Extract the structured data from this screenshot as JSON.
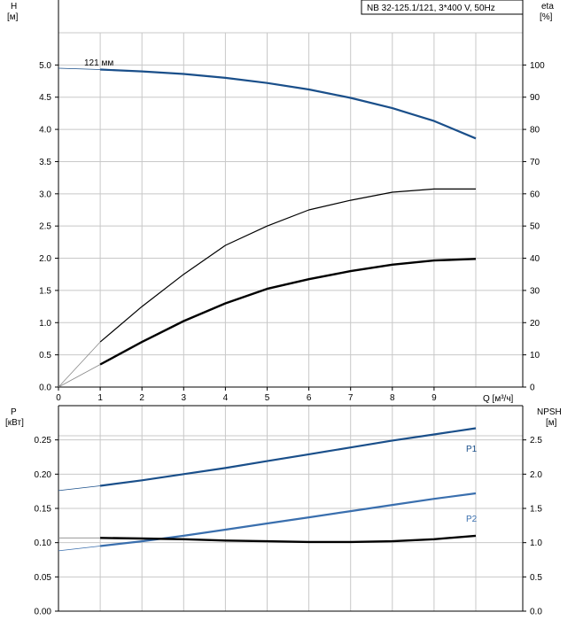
{
  "title_box": "NB 32-125.1/121, 3*400 V, 50Hz",
  "top_panel": {
    "left_axis_label": [
      "H",
      "[м]"
    ],
    "right_axis_label": [
      "eta",
      "[%]"
    ],
    "x_axis_label": "Q [м³/ч]",
    "x_ticks": [
      "0",
      "1",
      "2",
      "3",
      "4",
      "5",
      "6",
      "7",
      "8",
      "9"
    ],
    "left_ticks": [
      "0.0",
      "0.5",
      "1.0",
      "1.5",
      "2.0",
      "2.5",
      "3.0",
      "3.5",
      "4.0",
      "4.5",
      "5.0"
    ],
    "right_ticks": [
      "0",
      "10",
      "20",
      "30",
      "40",
      "50",
      "60",
      "70",
      "80",
      "90",
      "100"
    ],
    "curve_label": "121 мм"
  },
  "bottom_panel": {
    "left_axis_label": [
      "P",
      "[кВт]"
    ],
    "right_axis_label": [
      "NPSH",
      "[м]"
    ],
    "left_ticks": [
      "0.00",
      "0.05",
      "0.10",
      "0.15",
      "0.20",
      "0.25"
    ],
    "right_ticks": [
      "0.0",
      "0.5",
      "1.0",
      "1.5",
      "2.0",
      "2.5"
    ],
    "p1_label": "P1",
    "p2_label": "P2"
  },
  "colors": {
    "blue": "#1a4f8a",
    "blue_light": "#3a6fae",
    "black": "#000000",
    "grid": "#c8c8c8"
  },
  "chart_data": [
    {
      "type": "line",
      "xlim": [
        0,
        10
      ],
      "ylim": [
        0,
        5.5
      ],
      "y2lim": [
        0,
        110
      ],
      "series": [
        {
          "name": "121 мм",
          "axis": "left",
          "color": "#1a4f8a",
          "x": [
            0,
            1,
            2,
            3,
            4,
            5,
            6,
            7,
            8,
            9,
            10
          ],
          "y": [
            4.95,
            4.93,
            4.9,
            4.86,
            4.8,
            4.72,
            4.62,
            4.49,
            4.33,
            4.13,
            3.86
          ]
        },
        {
          "axis": "right",
          "color": "#000000",
          "x": [
            0,
            1,
            2,
            3,
            4,
            5,
            6,
            7,
            8,
            9,
            10
          ],
          "y": [
            0,
            14,
            25,
            35,
            44,
            50,
            55,
            58,
            60.5,
            61.5,
            61.5
          ]
        },
        {
          "axis": "right",
          "color": "#000000",
          "x": [
            0,
            1,
            2,
            3,
            4,
            5,
            6,
            7,
            8,
            9,
            10
          ],
          "y": [
            0,
            7,
            14,
            20.5,
            26,
            30.5,
            33.5,
            36,
            38,
            39.3,
            39.8
          ]
        }
      ]
    },
    {
      "type": "line",
      "xlim": [
        0,
        10
      ],
      "ylim": [
        0,
        0.3
      ],
      "y2lim": [
        0,
        3
      ],
      "series": [
        {
          "name": "P1",
          "axis": "left",
          "color": "#1a4f8a",
          "x": [
            0,
            1,
            2,
            3,
            4,
            5,
            6,
            7,
            8,
            9,
            10
          ],
          "y": [
            0.176,
            0.183,
            0.191,
            0.2,
            0.209,
            0.219,
            0.229,
            0.239,
            0.249,
            0.258,
            0.267
          ]
        },
        {
          "name": "P2",
          "axis": "left",
          "color": "#3a6fae",
          "x": [
            0,
            1,
            2,
            3,
            4,
            5,
            6,
            7,
            8,
            9,
            10
          ],
          "y": [
            0.088,
            0.095,
            0.102,
            0.11,
            0.119,
            0.128,
            0.137,
            0.146,
            0.155,
            0.164,
            0.172
          ]
        },
        {
          "axis": "right",
          "color": "#000000",
          "x": [
            0,
            1,
            2,
            3,
            4,
            5,
            6,
            7,
            8,
            9,
            10
          ],
          "y": [
            1.07,
            1.07,
            1.06,
            1.05,
            1.03,
            1.02,
            1.01,
            1.01,
            1.02,
            1.05,
            1.1
          ]
        }
      ]
    }
  ]
}
